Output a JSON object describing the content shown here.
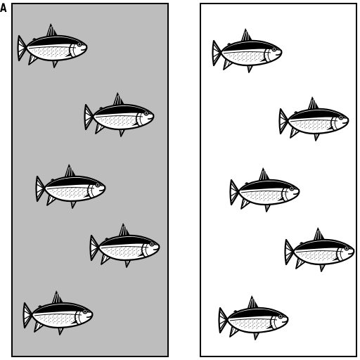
{
  "figure": {
    "panel_label": "A",
    "colors": {
      "tank_left_fill": "#bdbdbd",
      "tank_right_fill": "#ffffff",
      "outline": "#000000",
      "fish_body": "#ffffff"
    },
    "tanks": [
      {
        "name": "left-tank",
        "fish_count": 5
      },
      {
        "name": "right-tank",
        "fish_count": 5
      }
    ]
  }
}
